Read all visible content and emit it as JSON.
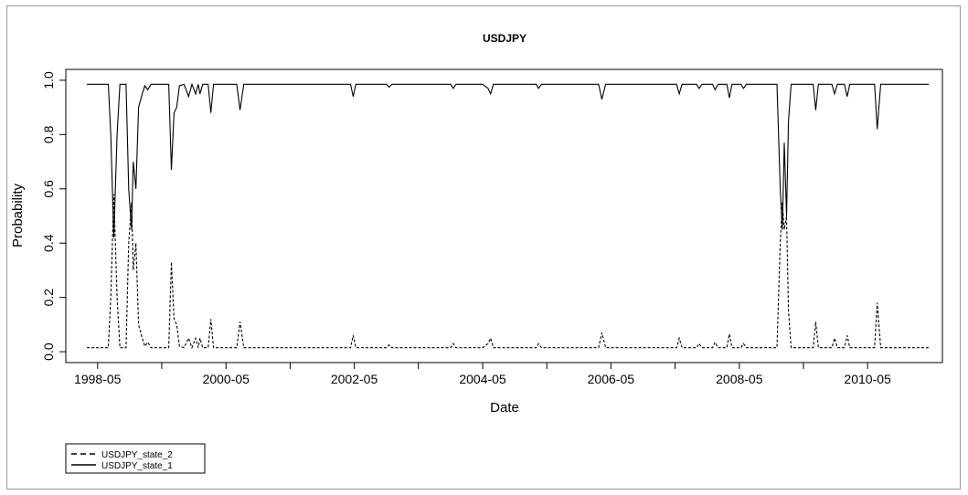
{
  "chart_data": {
    "type": "line",
    "title": "USDJPY",
    "xlabel": "Date",
    "ylabel": "Probability",
    "xlim": [
      "1997-11-01",
      "2011-07-01"
    ],
    "ylim": [
      -0.04,
      1.04
    ],
    "x_ticks": [
      "1998-05",
      "1999-05",
      "2000-05",
      "2001-05",
      "2002-05",
      "2003-05",
      "2004-05",
      "2005-05",
      "2006-05",
      "2007-05",
      "2008-05",
      "2009-05",
      "2010-05"
    ],
    "x_tick_labels": [
      "1998-05",
      "",
      "2000-05",
      "",
      "2002-05",
      "",
      "2004-05",
      "",
      "2006-05",
      "",
      "2008-05",
      "",
      "2010-05"
    ],
    "y_ticks": [
      0.0,
      0.2,
      0.4,
      0.6,
      0.8,
      1.0
    ],
    "y_tick_labels": [
      "0.0",
      "0.2",
      "0.4",
      "0.6",
      "0.8",
      "1.0"
    ],
    "legend": {
      "position": "bottom-left"
    },
    "series": [
      {
        "name": "USDJPY_state_2",
        "style": "dashed",
        "color": "#000000",
        "points": [
          [
            "1998-03-01",
            0.015
          ],
          [
            "1998-07-01",
            0.015
          ],
          [
            "1998-07-15",
            0.2
          ],
          [
            "1998-08-01",
            0.58
          ],
          [
            "1998-08-20",
            0.2
          ],
          [
            "1998-09-05",
            0.015
          ],
          [
            "1998-10-10",
            0.015
          ],
          [
            "1998-10-25",
            0.4
          ],
          [
            "1998-11-10",
            0.55
          ],
          [
            "1998-11-20",
            0.3
          ],
          [
            "1998-12-05",
            0.4
          ],
          [
            "1998-12-20",
            0.1
          ],
          [
            "1999-01-10",
            0.05
          ],
          [
            "1999-01-25",
            0.02
          ],
          [
            "1999-02-10",
            0.035
          ],
          [
            "1999-03-01",
            0.015
          ],
          [
            "1999-06-10",
            0.015
          ],
          [
            "1999-06-25",
            0.33
          ],
          [
            "1999-07-10",
            0.12
          ],
          [
            "1999-07-25",
            0.1
          ],
          [
            "1999-08-10",
            0.02
          ],
          [
            "1999-09-05",
            0.015
          ],
          [
            "1999-10-01",
            0.05
          ],
          [
            "1999-10-20",
            0.015
          ],
          [
            "1999-11-10",
            0.05
          ],
          [
            "1999-11-25",
            0.015
          ],
          [
            "1999-12-05",
            0.05
          ],
          [
            "1999-12-20",
            0.015
          ],
          [
            "2000-01-20",
            0.015
          ],
          [
            "2000-02-05",
            0.12
          ],
          [
            "2000-02-20",
            0.015
          ],
          [
            "2000-07-01",
            0.015
          ],
          [
            "2000-07-20",
            0.11
          ],
          [
            "2000-08-10",
            0.015
          ],
          [
            "2002-04-10",
            0.015
          ],
          [
            "2002-04-25",
            0.06
          ],
          [
            "2002-05-10",
            0.015
          ],
          [
            "2002-11-01",
            0.015
          ],
          [
            "2002-11-15",
            0.025
          ],
          [
            "2002-12-01",
            0.015
          ],
          [
            "2003-11-01",
            0.015
          ],
          [
            "2003-11-15",
            0.03
          ],
          [
            "2003-12-01",
            0.015
          ],
          [
            "2004-05-01",
            0.015
          ],
          [
            "2004-06-01",
            0.03
          ],
          [
            "2004-06-15",
            0.05
          ],
          [
            "2004-07-01",
            0.015
          ],
          [
            "2005-03-01",
            0.015
          ],
          [
            "2005-03-15",
            0.03
          ],
          [
            "2005-04-01",
            0.015
          ],
          [
            "2006-02-20",
            0.015
          ],
          [
            "2006-03-10",
            0.07
          ],
          [
            "2006-04-01",
            0.015
          ],
          [
            "2007-05-10",
            0.015
          ],
          [
            "2007-05-25",
            0.05
          ],
          [
            "2007-06-10",
            0.015
          ],
          [
            "2007-09-01",
            0.015
          ],
          [
            "2007-09-15",
            0.03
          ],
          [
            "2007-10-01",
            0.015
          ],
          [
            "2007-12-01",
            0.015
          ],
          [
            "2007-12-15",
            0.035
          ],
          [
            "2008-01-01",
            0.015
          ],
          [
            "2008-02-20",
            0.015
          ],
          [
            "2008-03-05",
            0.065
          ],
          [
            "2008-03-20",
            0.015
          ],
          [
            "2008-05-10",
            0.015
          ],
          [
            "2008-05-25",
            0.03
          ],
          [
            "2008-06-10",
            0.015
          ],
          [
            "2008-12-01",
            0.015
          ],
          [
            "2008-12-20",
            0.4
          ],
          [
            "2009-01-01",
            0.55
          ],
          [
            "2009-01-12",
            0.45
          ],
          [
            "2009-01-25",
            0.5
          ],
          [
            "2009-02-05",
            0.15
          ],
          [
            "2009-02-20",
            0.015
          ],
          [
            "2009-06-25",
            0.015
          ],
          [
            "2009-07-10",
            0.11
          ],
          [
            "2009-07-25",
            0.015
          ],
          [
            "2009-10-10",
            0.015
          ],
          [
            "2009-10-25",
            0.05
          ],
          [
            "2009-11-10",
            0.015
          ],
          [
            "2009-12-20",
            0.015
          ],
          [
            "2010-01-05",
            0.06
          ],
          [
            "2010-01-20",
            0.015
          ],
          [
            "2010-06-10",
            0.015
          ],
          [
            "2010-06-25",
            0.18
          ],
          [
            "2010-07-15",
            0.015
          ],
          [
            "2011-04-15",
            0.015
          ]
        ]
      },
      {
        "name": "USDJPY_state_1",
        "style": "solid",
        "color": "#000000",
        "points": [
          [
            "1998-03-01",
            0.985
          ],
          [
            "1998-07-01",
            0.985
          ],
          [
            "1998-07-15",
            0.8
          ],
          [
            "1998-08-01",
            0.42
          ],
          [
            "1998-08-20",
            0.8
          ],
          [
            "1998-09-05",
            0.985
          ],
          [
            "1998-10-10",
            0.985
          ],
          [
            "1998-10-25",
            0.6
          ],
          [
            "1998-11-10",
            0.45
          ],
          [
            "1998-11-20",
            0.7
          ],
          [
            "1998-12-05",
            0.6
          ],
          [
            "1998-12-20",
            0.9
          ],
          [
            "1999-01-10",
            0.95
          ],
          [
            "1999-01-25",
            0.98
          ],
          [
            "1999-02-10",
            0.965
          ],
          [
            "1999-03-01",
            0.985
          ],
          [
            "1999-06-10",
            0.985
          ],
          [
            "1999-06-25",
            0.67
          ],
          [
            "1999-07-10",
            0.88
          ],
          [
            "1999-07-25",
            0.9
          ],
          [
            "1999-08-10",
            0.98
          ],
          [
            "1999-09-05",
            0.985
          ],
          [
            "1999-10-01",
            0.94
          ],
          [
            "1999-10-20",
            0.985
          ],
          [
            "1999-11-10",
            0.95
          ],
          [
            "1999-11-25",
            0.985
          ],
          [
            "1999-12-05",
            0.95
          ],
          [
            "1999-12-20",
            0.985
          ],
          [
            "2000-01-20",
            0.985
          ],
          [
            "2000-02-05",
            0.88
          ],
          [
            "2000-02-20",
            0.985
          ],
          [
            "2000-07-01",
            0.985
          ],
          [
            "2000-07-20",
            0.89
          ],
          [
            "2000-08-10",
            0.985
          ],
          [
            "2002-04-10",
            0.985
          ],
          [
            "2002-04-25",
            0.94
          ],
          [
            "2002-05-10",
            0.985
          ],
          [
            "2002-11-01",
            0.985
          ],
          [
            "2002-11-15",
            0.975
          ],
          [
            "2002-12-01",
            0.985
          ],
          [
            "2003-11-01",
            0.985
          ],
          [
            "2003-11-15",
            0.97
          ],
          [
            "2003-12-01",
            0.985
          ],
          [
            "2004-05-01",
            0.985
          ],
          [
            "2004-06-01",
            0.97
          ],
          [
            "2004-06-15",
            0.95
          ],
          [
            "2004-07-01",
            0.985
          ],
          [
            "2005-03-01",
            0.985
          ],
          [
            "2005-03-15",
            0.97
          ],
          [
            "2005-04-01",
            0.985
          ],
          [
            "2006-02-20",
            0.985
          ],
          [
            "2006-03-10",
            0.93
          ],
          [
            "2006-04-01",
            0.985
          ],
          [
            "2007-05-10",
            0.985
          ],
          [
            "2007-05-25",
            0.95
          ],
          [
            "2007-06-10",
            0.985
          ],
          [
            "2007-09-01",
            0.985
          ],
          [
            "2007-09-15",
            0.97
          ],
          [
            "2007-10-01",
            0.985
          ],
          [
            "2007-12-01",
            0.985
          ],
          [
            "2007-12-15",
            0.965
          ],
          [
            "2008-01-01",
            0.985
          ],
          [
            "2008-02-20",
            0.985
          ],
          [
            "2008-03-05",
            0.935
          ],
          [
            "2008-03-20",
            0.985
          ],
          [
            "2008-05-10",
            0.985
          ],
          [
            "2008-05-25",
            0.97
          ],
          [
            "2008-06-10",
            0.985
          ],
          [
            "2008-12-01",
            0.985
          ],
          [
            "2008-12-20",
            0.6
          ],
          [
            "2009-01-01",
            0.45
          ],
          [
            "2009-01-12",
            0.77
          ],
          [
            "2009-01-25",
            0.5
          ],
          [
            "2009-02-05",
            0.85
          ],
          [
            "2009-02-20",
            0.985
          ],
          [
            "2009-06-25",
            0.985
          ],
          [
            "2009-07-10",
            0.89
          ],
          [
            "2009-07-25",
            0.985
          ],
          [
            "2009-10-10",
            0.985
          ],
          [
            "2009-10-25",
            0.95
          ],
          [
            "2009-11-10",
            0.985
          ],
          [
            "2009-12-20",
            0.985
          ],
          [
            "2010-01-05",
            0.94
          ],
          [
            "2010-01-20",
            0.985
          ],
          [
            "2010-06-10",
            0.985
          ],
          [
            "2010-06-25",
            0.82
          ],
          [
            "2010-07-15",
            0.985
          ],
          [
            "2011-04-15",
            0.985
          ]
        ]
      }
    ]
  }
}
